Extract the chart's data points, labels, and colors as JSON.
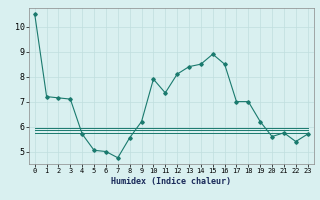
{
  "xlabel": "Humidex (Indice chaleur)",
  "ylabel": "",
  "x": [
    0,
    1,
    2,
    3,
    4,
    5,
    6,
    7,
    8,
    9,
    10,
    11,
    12,
    13,
    14,
    15,
    16,
    17,
    18,
    19,
    20,
    21,
    22,
    23
  ],
  "y_main": [
    10.5,
    7.2,
    7.15,
    7.1,
    5.7,
    5.05,
    5.0,
    4.75,
    5.55,
    6.2,
    7.9,
    7.35,
    8.1,
    8.4,
    8.5,
    8.9,
    8.5,
    7.0,
    7.0,
    6.2,
    5.6,
    5.75,
    5.4,
    5.7
  ],
  "y_flat1": [
    5.95,
    5.95,
    5.95,
    5.95,
    5.95,
    5.95,
    5.95,
    5.95,
    5.95,
    5.95,
    5.95,
    5.95,
    5.95,
    5.95,
    5.95,
    5.95,
    5.95,
    5.95,
    5.95,
    5.95,
    5.95,
    5.95,
    5.95,
    5.95
  ],
  "y_flat2": [
    5.85,
    5.85,
    5.85,
    5.85,
    5.85,
    5.85,
    5.85,
    5.85,
    5.85,
    5.85,
    5.85,
    5.85,
    5.85,
    5.85,
    5.85,
    5.85,
    5.85,
    5.85,
    5.85,
    5.85,
    5.85,
    5.85,
    5.85,
    5.85
  ],
  "y_flat3": [
    5.75,
    5.75,
    5.75,
    5.75,
    5.75,
    5.75,
    5.75,
    5.75,
    5.75,
    5.75,
    5.75,
    5.75,
    5.75,
    5.75,
    5.75,
    5.75,
    5.75,
    5.75,
    5.75,
    5.75,
    5.75,
    5.75,
    5.75,
    5.75
  ],
  "line_color": "#1a7a6e",
  "bg_color": "#d9f0f0",
  "grid_color": "#c0dede",
  "ylim": [
    4.5,
    10.75
  ],
  "xlim": [
    -0.5,
    23.5
  ],
  "yticks": [
    5,
    6,
    7,
    8,
    9,
    10
  ],
  "xticks": [
    0,
    1,
    2,
    3,
    4,
    5,
    6,
    7,
    8,
    9,
    10,
    11,
    12,
    13,
    14,
    15,
    16,
    17,
    18,
    19,
    20,
    21,
    22,
    23
  ]
}
